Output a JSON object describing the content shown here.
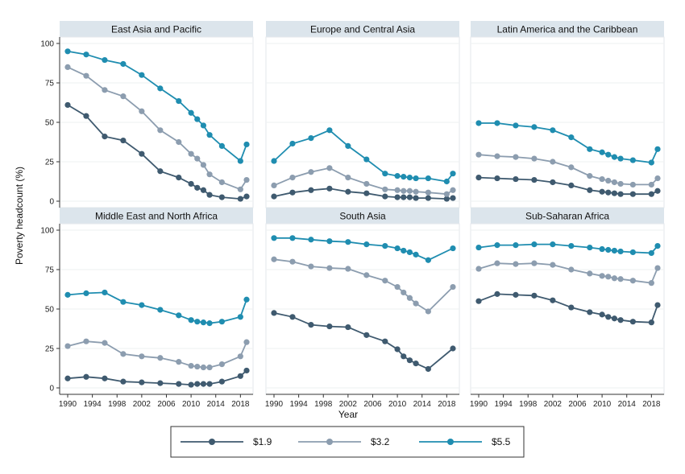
{
  "chart_data": {
    "type": "line",
    "ylabel": "Poverty headcount (%)",
    "xlabel": "Year",
    "ylim": [
      0,
      100
    ],
    "yticks": [
      0,
      25,
      50,
      75,
      100
    ],
    "xlim": [
      1990,
      2019
    ],
    "xticks": [
      1990,
      1994,
      1998,
      2002,
      2006,
      2010,
      2014,
      2018
    ],
    "grid": true,
    "legend_placement": "bottom",
    "series_styles": [
      {
        "name": "$1.9",
        "color": "#3f5a6f"
      },
      {
        "name": "$3.2",
        "color": "#8c9daf"
      },
      {
        "name": "$5.5",
        "color": "#1f8db0"
      }
    ],
    "panels": [
      {
        "title": "East Asia and Pacific",
        "x": [
          1990,
          1993,
          1996,
          1999,
          2002,
          2005,
          2008,
          2010,
          2011,
          2012,
          2013,
          2015,
          2018,
          2019
        ],
        "series": [
          {
            "name": "$1.9",
            "values": [
              61,
              54,
              41,
              38.5,
              30,
              19,
              15,
              11,
              8.5,
              7,
              4,
              2.5,
              1.5,
              3
            ]
          },
          {
            "name": "$3.2",
            "values": [
              85,
              79.5,
              70.5,
              66.5,
              57,
              45,
              37.5,
              30,
              27,
              23,
              17,
              12,
              7.5,
              13.5
            ]
          },
          {
            "name": "$5.5",
            "values": [
              95,
              93,
              89.5,
              87,
              80,
              71.5,
              63.5,
              56,
              52,
              48,
              42,
              35,
              25.5,
              36
            ]
          }
        ]
      },
      {
        "title": "Europe and Central Asia",
        "x": [
          1990,
          1993,
          1996,
          1999,
          2002,
          2005,
          2008,
          2010,
          2011,
          2012,
          2013,
          2015,
          2018,
          2019
        ],
        "series": [
          {
            "name": "$1.9",
            "values": [
              3,
              5.5,
              7,
              8,
              6,
              5,
              3,
              2.5,
              2.5,
              2.5,
              2,
              2,
              1.5,
              2
            ]
          },
          {
            "name": "$3.2",
            "values": [
              10,
              15,
              18.5,
              21,
              15,
              11,
              7.5,
              7,
              6.5,
              6.5,
              6,
              5.5,
              4.5,
              7
            ]
          },
          {
            "name": "$5.5",
            "values": [
              25.5,
              36.5,
              40,
              45,
              35,
              26.5,
              17.5,
              16,
              15.5,
              15,
              14.5,
              14.5,
              12.5,
              17.5
            ]
          }
        ]
      },
      {
        "title": "Latin America and the Caribbean",
        "x": [
          1990,
          1993,
          1996,
          1999,
          2002,
          2005,
          2008,
          2010,
          2011,
          2012,
          2013,
          2015,
          2018,
          2019
        ],
        "series": [
          {
            "name": "$1.9",
            "values": [
              15,
              14.5,
              14,
              13.5,
              12,
              10,
              7,
              6,
              5.5,
              5,
              4.5,
              4.5,
              4.5,
              6.5
            ]
          },
          {
            "name": "$3.2",
            "values": [
              29.5,
              28.5,
              28,
              27,
              25,
              21.5,
              16,
              14,
              13,
              12,
              11,
              10.5,
              10.5,
              14.5
            ]
          },
          {
            "name": "$5.5",
            "values": [
              49.5,
              49.5,
              48,
              47,
              45,
              40.5,
              33,
              31,
              29.5,
              28,
              27,
              26,
              24.5,
              33
            ]
          }
        ]
      },
      {
        "title": "Middle East and North Africa",
        "x": [
          1990,
          1993,
          1996,
          1999,
          2002,
          2005,
          2008,
          2010,
          2011,
          2012,
          2013,
          2015,
          2018,
          2019
        ],
        "series": [
          {
            "name": "$1.9",
            "values": [
              6,
              7,
              6,
              4,
              3.5,
              3,
              2.5,
              2,
              2.5,
              2.5,
              2.5,
              4,
              7.5,
              11
            ]
          },
          {
            "name": "$3.2",
            "values": [
              26.5,
              29.5,
              28.5,
              21.5,
              20,
              19,
              16.5,
              14,
              13.5,
              13,
              13,
              15,
              20,
              29
            ]
          },
          {
            "name": "$5.5",
            "values": [
              59,
              60,
              60.5,
              54.5,
              52.5,
              49.5,
              46,
              43,
              42,
              41.5,
              41,
              42,
              45,
              56
            ]
          }
        ]
      },
      {
        "title": "South Asia",
        "x": [
          1990,
          1993,
          1996,
          1999,
          2002,
          2005,
          2008,
          2010,
          2011,
          2012,
          2013,
          2015,
          2019
        ],
        "series": [
          {
            "name": "$1.9",
            "values": [
              47.5,
              45,
              40,
              39,
              38.5,
              33.5,
              29.5,
              24.5,
              20,
              17.5,
              15.5,
              12,
              25
            ]
          },
          {
            "name": "$3.2",
            "values": [
              81.5,
              80,
              77,
              76,
              75.5,
              71.5,
              68,
              64,
              60.5,
              57,
              53.5,
              48.5,
              64
            ]
          },
          {
            "name": "$5.5",
            "values": [
              95,
              95,
              94,
              93,
              92.5,
              91,
              90,
              88.5,
              87,
              86,
              84.5,
              81,
              88.5
            ]
          }
        ]
      },
      {
        "title": "Sub-Saharan Africa",
        "x": [
          1990,
          1993,
          1996,
          1999,
          2002,
          2005,
          2008,
          2010,
          2011,
          2012,
          2013,
          2015,
          2018,
          2019
        ],
        "series": [
          {
            "name": "$1.9",
            "values": [
              55,
              59.5,
              59,
              58.5,
              55.5,
              51,
              48,
              46.5,
              45,
              44,
              43,
              42,
              41.5,
              52.5
            ]
          },
          {
            "name": "$3.2",
            "values": [
              75.5,
              79,
              78.5,
              79,
              78,
              75,
              72.5,
              71,
              70.5,
              69.5,
              69,
              68,
              66.5,
              76
            ]
          },
          {
            "name": "$5.5",
            "values": [
              89,
              90.5,
              90.5,
              91,
              91,
              90,
              89,
              88,
              87.5,
              87,
              86.5,
              86,
              85.5,
              90
            ]
          }
        ]
      }
    ]
  }
}
